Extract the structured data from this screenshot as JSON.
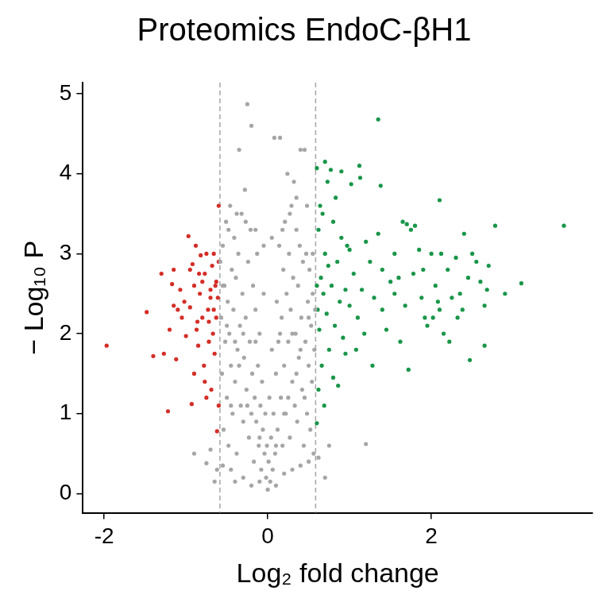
{
  "chart_data": {
    "type": "scatter",
    "title": "Proteomics EndoC-βH1",
    "x_label": "Log₂ fold change",
    "y_label": "− Log₁₀ P",
    "xlim": [
      -2.26,
      3.97
    ],
    "ylim": [
      -0.24,
      5.14
    ],
    "xticks": [
      -2,
      0,
      2
    ],
    "yticks": [
      0,
      1,
      2,
      3,
      4,
      5
    ],
    "grid": false,
    "thresholds": [
      -0.585,
      0.585
    ],
    "series": [
      {
        "color": "#a6a6a6",
        "marker": "circle",
        "values": [
          [
            -0.58,
            2.9
          ],
          [
            -0.57,
            2.2
          ],
          [
            -0.56,
            1.5
          ],
          [
            -0.55,
            3.1
          ],
          [
            -0.54,
            0.8
          ],
          [
            -0.53,
            2.6
          ],
          [
            -0.52,
            1.9
          ],
          [
            -0.51,
            3.4
          ],
          [
            -0.5,
            1.2
          ],
          [
            -0.49,
            2.4
          ],
          [
            -0.48,
            0.6
          ],
          [
            -0.47,
            2.0
          ],
          [
            -0.46,
            3.6
          ],
          [
            -0.45,
            1.6
          ],
          [
            -0.44,
            2.8
          ],
          [
            -0.43,
            1.0
          ],
          [
            -0.42,
            2.3
          ],
          [
            -0.41,
            3.2
          ],
          [
            -0.4,
            1.4
          ],
          [
            -0.39,
            2.7
          ],
          [
            -0.38,
            0.5
          ],
          [
            -0.37,
            1.8
          ],
          [
            -0.36,
            3.0
          ],
          [
            -0.35,
            4.3
          ],
          [
            -0.34,
            2.1
          ],
          [
            -0.33,
            1.1
          ],
          [
            -0.32,
            3.5
          ],
          [
            -0.31,
            2.5
          ],
          [
            -0.3,
            0.9
          ],
          [
            -0.29,
            1.7
          ],
          [
            -0.28,
            3.8
          ],
          [
            -0.27,
            2.2
          ],
          [
            -0.26,
            1.3
          ],
          [
            -0.25,
            4.87
          ],
          [
            -0.24,
            2.9
          ],
          [
            -0.23,
            0.7
          ],
          [
            -0.22,
            1.9
          ],
          [
            -0.21,
            3.3
          ],
          [
            -0.2,
            4.6
          ],
          [
            -0.19,
            1.5
          ],
          [
            -0.18,
            2.6
          ],
          [
            -0.17,
            0.4
          ],
          [
            -0.16,
            1.2
          ],
          [
            -0.15,
            2.3
          ],
          [
            -0.14,
            0.9
          ],
          [
            -0.13,
            3.0
          ],
          [
            -0.12,
            1.6
          ],
          [
            -0.11,
            0.6
          ],
          [
            -0.1,
            2.0
          ],
          [
            -0.09,
            1.1
          ],
          [
            -0.08,
            0.3
          ],
          [
            -0.07,
            1.4
          ],
          [
            -0.06,
            0.8
          ],
          [
            -0.05,
            2.5
          ],
          [
            -0.04,
            0.5
          ],
          [
            -0.03,
            1.0
          ],
          [
            -0.02,
            0.2
          ],
          [
            -0.01,
            0.6
          ],
          [
            0.0,
            0.05
          ],
          [
            0.01,
            0.4
          ],
          [
            0.02,
            1.2
          ],
          [
            0.03,
            0.15
          ],
          [
            0.04,
            0.7
          ],
          [
            0.05,
            1.8
          ],
          [
            0.06,
            0.3
          ],
          [
            0.07,
            1.0
          ],
          [
            0.08,
            4.45
          ],
          [
            0.09,
            0.5
          ],
          [
            0.1,
            1.5
          ],
          [
            0.11,
            2.4
          ],
          [
            0.12,
            0.8
          ],
          [
            0.13,
            1.9
          ],
          [
            0.14,
            3.1
          ],
          [
            0.15,
            4.45
          ],
          [
            0.16,
            1.2
          ],
          [
            0.17,
            2.2
          ],
          [
            0.18,
            0.6
          ],
          [
            0.19,
            2.8
          ],
          [
            0.2,
            1.6
          ],
          [
            0.21,
            3.4
          ],
          [
            0.22,
            1.0
          ],
          [
            0.23,
            2.5
          ],
          [
            0.24,
            4.0
          ],
          [
            0.25,
            1.9
          ],
          [
            0.26,
            3.0
          ],
          [
            0.27,
            0.7
          ],
          [
            0.28,
            2.3
          ],
          [
            0.29,
            3.6
          ],
          [
            0.3,
            1.4
          ],
          [
            0.31,
            2.7
          ],
          [
            0.32,
            3.9
          ],
          [
            0.33,
            1.1
          ],
          [
            0.34,
            2.0
          ],
          [
            0.35,
            3.3
          ],
          [
            0.36,
            0.9
          ],
          [
            0.37,
            2.6
          ],
          [
            0.38,
            1.7
          ],
          [
            0.39,
            3.1
          ],
          [
            0.4,
            4.3
          ],
          [
            0.41,
            2.2
          ],
          [
            0.42,
            1.3
          ],
          [
            0.43,
            2.9
          ],
          [
            0.44,
            0.6
          ],
          [
            0.45,
            4.3
          ],
          [
            0.46,
            1.9
          ],
          [
            0.47,
            3.0
          ],
          [
            0.48,
            1.0
          ],
          [
            0.49,
            2.4
          ],
          [
            0.5,
            1.6
          ],
          [
            0.51,
            2.8
          ],
          [
            0.52,
            0.8
          ],
          [
            0.53,
            2.1
          ],
          [
            0.54,
            1.4
          ],
          [
            0.55,
            2.5
          ],
          [
            0.56,
            0.5
          ],
          [
            0.57,
            1.8
          ],
          [
            0.58,
            2.3
          ],
          [
            -0.45,
            0.3
          ],
          [
            -0.3,
            0.2
          ],
          [
            -0.2,
            0.1
          ],
          [
            -0.1,
            0.15
          ],
          [
            0.1,
            0.1
          ],
          [
            0.2,
            0.25
          ],
          [
            0.3,
            0.3
          ],
          [
            0.4,
            0.35
          ],
          [
            0.5,
            0.4
          ],
          [
            -0.4,
            0.15
          ],
          [
            -0.55,
            0.35
          ],
          [
            1.2,
            0.62
          ],
          [
            -0.9,
            0.5
          ],
          [
            -0.75,
            0.38
          ],
          [
            -0.62,
            0.3
          ],
          [
            -0.7,
            0.55
          ],
          [
            0.62,
            0.45
          ],
          [
            0.7,
            0.2
          ],
          [
            0.75,
            0.6
          ],
          [
            -0.65,
            0.15
          ],
          [
            0.48,
            3.6
          ],
          [
            -0.48,
            3.3
          ],
          [
            0.35,
            3.7
          ],
          [
            -0.38,
            3.5
          ],
          [
            0.27,
            3.5
          ],
          [
            -0.27,
            3.4
          ],
          [
            0.18,
            3.3
          ],
          [
            -0.15,
            3.3
          ],
          [
            0.05,
            3.2
          ],
          [
            -0.05,
            3.1
          ],
          [
            0.3,
            2.0
          ],
          [
            -0.3,
            2.0
          ],
          [
            0.2,
            1.0
          ],
          [
            -0.2,
            1.0
          ],
          [
            0.1,
            0.6
          ],
          [
            -0.1,
            0.7
          ],
          [
            0.4,
            1.8
          ],
          [
            -0.4,
            1.9
          ],
          [
            0.5,
            2.2
          ],
          [
            -0.5,
            2.1
          ],
          [
            0.45,
            1.2
          ],
          [
            -0.45,
            1.1
          ],
          [
            0.15,
            2.0
          ],
          [
            -0.15,
            1.9
          ],
          [
            0.25,
            1.2
          ],
          [
            -0.25,
            1.1
          ],
          [
            0.35,
            1.5
          ],
          [
            -0.35,
            1.6
          ],
          [
            0.55,
            3.0
          ],
          [
            -0.55,
            2.6
          ]
        ]
      },
      {
        "color": "#d42e27",
        "marker": "circle",
        "values": [
          [
            -1.97,
            1.85
          ],
          [
            -1.48,
            2.27
          ],
          [
            -1.4,
            1.72
          ],
          [
            -1.3,
            2.75
          ],
          [
            -1.27,
            1.75
          ],
          [
            -1.22,
            1.03
          ],
          [
            -1.2,
            2.05
          ],
          [
            -1.17,
            2.62
          ],
          [
            -1.15,
            2.8
          ],
          [
            -1.12,
            1.68
          ],
          [
            -1.1,
            2.3
          ],
          [
            -1.05,
            2.2
          ],
          [
            -1.02,
            2.4
          ],
          [
            -1.0,
            1.97
          ],
          [
            -0.97,
            3.22
          ],
          [
            -0.95,
            2.33
          ],
          [
            -0.93,
            1.12
          ],
          [
            -0.92,
            2.87
          ],
          [
            -0.9,
            2.6
          ],
          [
            -0.88,
            3.1
          ],
          [
            -0.87,
            2.05
          ],
          [
            -0.85,
            1.85
          ],
          [
            -0.83,
            2.5
          ],
          [
            -0.82,
            2.98
          ],
          [
            -0.8,
            2.2
          ],
          [
            -0.78,
            1.6
          ],
          [
            -0.77,
            2.75
          ],
          [
            -0.75,
            3.0
          ],
          [
            -0.73,
            2.3
          ],
          [
            -0.72,
            1.9
          ],
          [
            -0.7,
            2.55
          ],
          [
            -0.69,
            1.3
          ],
          [
            -0.68,
            2.85
          ],
          [
            -0.67,
            2.0
          ],
          [
            -0.66,
            3.0
          ],
          [
            -0.65,
            1.75
          ],
          [
            -0.64,
            2.6
          ],
          [
            -0.63,
            2.2
          ],
          [
            -0.62,
            0.78
          ],
          [
            -0.61,
            2.45
          ],
          [
            -0.6,
            2.9
          ],
          [
            -0.75,
            1.2
          ],
          [
            -0.8,
            2.65
          ],
          [
            -0.9,
            1.5
          ],
          [
            -0.95,
            2.8
          ],
          [
            -1.07,
            2.55
          ],
          [
            -1.15,
            2.35
          ],
          [
            -0.86,
            2.15
          ],
          [
            -0.7,
            2.45
          ],
          [
            -0.63,
            2.65
          ],
          [
            -0.6,
            3.6
          ],
          [
            -0.66,
            2.3
          ],
          [
            -0.72,
            2.15
          ],
          [
            -0.77,
            1.4
          ],
          [
            -0.84,
            2.75
          ],
          [
            -0.6,
            1.1
          ]
        ]
      },
      {
        "color": "#199649",
        "marker": "circle",
        "values": [
          [
            0.6,
            4.07
          ],
          [
            0.7,
            4.15
          ],
          [
            0.77,
            4.05
          ],
          [
            0.8,
            3.4
          ],
          [
            0.83,
            3.7
          ],
          [
            0.9,
            4.03
          ],
          [
            0.97,
            3.1
          ],
          [
            1.02,
            3.87
          ],
          [
            1.12,
            4.1
          ],
          [
            1.13,
            3.95
          ],
          [
            1.35,
            4.68
          ],
          [
            1.38,
            3.85
          ],
          [
            1.4,
            2.8
          ],
          [
            1.5,
            2.65
          ],
          [
            1.55,
            3.0
          ],
          [
            1.35,
            3.25
          ],
          [
            1.6,
            2.7
          ],
          [
            1.65,
            3.4
          ],
          [
            1.7,
            3.37
          ],
          [
            1.75,
            3.3
          ],
          [
            1.8,
            3.35
          ],
          [
            1.85,
            3.05
          ],
          [
            1.9,
            2.8
          ],
          [
            1.92,
            2.2
          ],
          [
            2.1,
            3.67
          ],
          [
            2.0,
            3.0
          ],
          [
            2.05,
            2.6
          ],
          [
            2.1,
            2.3
          ],
          [
            2.15,
            2.0
          ],
          [
            2.2,
            2.8
          ],
          [
            2.25,
            2.45
          ],
          [
            2.3,
            2.95
          ],
          [
            2.35,
            2.5
          ],
          [
            2.4,
            3.25
          ],
          [
            2.45,
            2.7
          ],
          [
            2.5,
            3.0
          ],
          [
            2.55,
            2.9
          ],
          [
            2.6,
            2.65
          ],
          [
            2.65,
            2.35
          ],
          [
            2.7,
            2.85
          ],
          [
            2.78,
            3.35
          ],
          [
            2.9,
            2.5
          ],
          [
            3.1,
            2.63
          ],
          [
            3.62,
            3.35
          ],
          [
            2.47,
            1.67
          ],
          [
            2.65,
            1.85
          ],
          [
            2.68,
            2.55
          ],
          [
            1.72,
            1.55
          ],
          [
            1.88,
            2.45
          ],
          [
            1.95,
            2.1
          ],
          [
            2.08,
            2.4
          ],
          [
            2.22,
            1.9
          ],
          [
            1.45,
            2.05
          ],
          [
            1.3,
            2.45
          ],
          [
            1.25,
            2.9
          ],
          [
            1.2,
            3.15
          ],
          [
            1.15,
            2.55
          ],
          [
            1.1,
            2.2
          ],
          [
            1.05,
            2.75
          ],
          [
            1.0,
            2.35
          ],
          [
            0.95,
            2.55
          ],
          [
            0.92,
            1.95
          ],
          [
            0.88,
            2.4
          ],
          [
            0.85,
            2.9
          ],
          [
            0.82,
            2.1
          ],
          [
            0.78,
            2.6
          ],
          [
            0.75,
            1.8
          ],
          [
            0.72,
            2.25
          ],
          [
            0.7,
            3.0
          ],
          [
            0.68,
            2.5
          ],
          [
            0.66,
            1.6
          ],
          [
            0.65,
            2.7
          ],
          [
            0.63,
            2.05
          ],
          [
            0.62,
            1.3
          ],
          [
            0.61,
            2.3
          ],
          [
            0.6,
            0.88
          ],
          [
            0.6,
            2.6
          ],
          [
            0.62,
            3.3
          ],
          [
            0.67,
            3.5
          ],
          [
            0.74,
            2.85
          ],
          [
            0.8,
            1.45
          ],
          [
            0.86,
            1.35
          ],
          [
            0.9,
            3.2
          ],
          [
            0.95,
            1.75
          ],
          [
            1.0,
            3.05
          ],
          [
            1.08,
            1.8
          ],
          [
            1.18,
            2.0
          ],
          [
            1.28,
            1.6
          ],
          [
            1.4,
            2.3
          ],
          [
            1.55,
            2.5
          ],
          [
            1.62,
            1.9
          ],
          [
            1.68,
            2.35
          ],
          [
            1.78,
            2.75
          ],
          [
            2.02,
            2.2
          ],
          [
            2.12,
            3.0
          ],
          [
            2.32,
            2.2
          ],
          [
            2.38,
            2.3
          ],
          [
            0.69,
            1.1
          ],
          [
            0.73,
            3.9
          ],
          [
            0.64,
            3.6
          ]
        ]
      }
    ]
  }
}
